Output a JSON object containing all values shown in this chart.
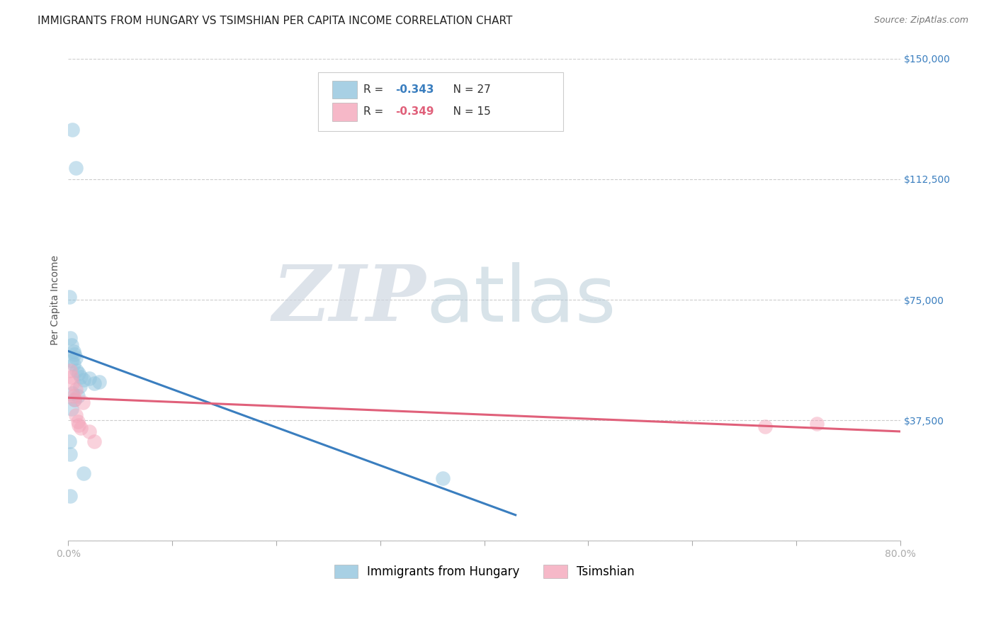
{
  "title": "IMMIGRANTS FROM HUNGARY VS TSIMSHIAN PER CAPITA INCOME CORRELATION CHART",
  "source": "Source: ZipAtlas.com",
  "ylabel": "Per Capita Income",
  "xlim": [
    0.0,
    0.8
  ],
  "ylim": [
    0,
    150000
  ],
  "yticks": [
    0,
    37500,
    75000,
    112500,
    150000
  ],
  "ytick_labels": [
    "",
    "$37,500",
    "$75,000",
    "$112,500",
    "$150,000"
  ],
  "xtick_positions": [
    0.0,
    0.1,
    0.2,
    0.3,
    0.4,
    0.5,
    0.6,
    0.7,
    0.8
  ],
  "xtick_labels": [
    "0.0%",
    "",
    "",
    "",
    "",
    "",
    "",
    "",
    "80.0%"
  ],
  "blue_label": "Immigrants from Hungary",
  "pink_label": "Tsimshian",
  "blue_R": "-0.343",
  "blue_N": "27",
  "pink_R": "-0.349",
  "pink_N": "15",
  "blue_color": "#92c5de",
  "pink_color": "#f4a6bb",
  "blue_line_color": "#3a7ebf",
  "pink_line_color": "#e0607a",
  "blue_scatter_x": [
    0.004,
    0.007,
    0.001,
    0.002,
    0.003,
    0.005,
    0.006,
    0.007,
    0.003,
    0.005,
    0.008,
    0.01,
    0.012,
    0.015,
    0.02,
    0.025,
    0.03,
    0.001,
    0.002,
    0.003,
    0.004,
    0.006,
    0.009,
    0.011,
    0.015,
    0.36,
    0.002
  ],
  "blue_scatter_y": [
    128000,
    116000,
    76000,
    63000,
    61000,
    59000,
    58000,
    57000,
    56000,
    55000,
    53000,
    52000,
    51000,
    50000,
    50500,
    49000,
    49500,
    31000,
    27000,
    41000,
    46000,
    44000,
    45000,
    48000,
    21000,
    19500,
    14000
  ],
  "pink_scatter_x": [
    0.002,
    0.003,
    0.004,
    0.005,
    0.006,
    0.007,
    0.007,
    0.01,
    0.012,
    0.014,
    0.02,
    0.025,
    0.67,
    0.72,
    0.009
  ],
  "pink_scatter_y": [
    53000,
    51000,
    49000,
    45000,
    44000,
    47000,
    39000,
    36000,
    35000,
    43000,
    34000,
    31000,
    35500,
    36500,
    37000
  ],
  "blue_trendline_x": [
    0.0,
    0.43
  ],
  "blue_trendline_y": [
    59000,
    8000
  ],
  "pink_trendline_x": [
    0.0,
    0.8
  ],
  "pink_trendline_y": [
    44500,
    34000
  ],
  "title_fontsize": 11,
  "axis_label_fontsize": 10,
  "tick_fontsize": 10,
  "legend_fontsize": 11,
  "source_fontsize": 9
}
